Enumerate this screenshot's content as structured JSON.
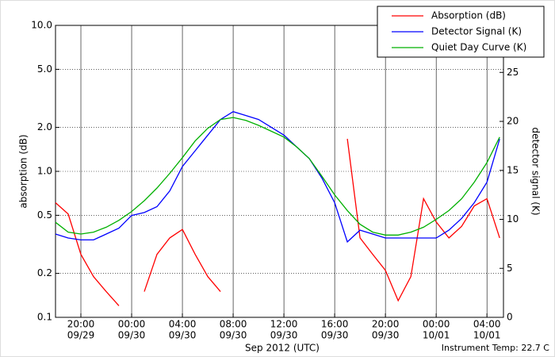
{
  "chart_data": {
    "type": "line",
    "xlabel": "Sep 2012 (UTC)",
    "ylabel": "absorption (dB)",
    "y2label": "detector signal (K)",
    "annotation": "Instrument Temp: 22.7 C",
    "legend": "upper right",
    "ylog": true,
    "grid": true,
    "x": [
      "2012-09-29T18:00",
      "2012-09-29T19:00",
      "2012-09-29T20:00",
      "2012-09-29T21:00",
      "2012-09-29T22:00",
      "2012-09-29T23:00",
      "2012-09-30T00:00",
      "2012-09-30T01:00",
      "2012-09-30T02:00",
      "2012-09-30T03:00",
      "2012-09-30T04:00",
      "2012-09-30T05:00",
      "2012-09-30T06:00",
      "2012-09-30T07:00",
      "2012-09-30T08:00",
      "2012-09-30T09:00",
      "2012-09-30T10:00",
      "2012-09-30T11:00",
      "2012-09-30T12:00",
      "2012-09-30T13:00",
      "2012-09-30T14:00",
      "2012-09-30T15:00",
      "2012-09-30T16:00",
      "2012-09-30T17:00",
      "2012-09-30T18:00",
      "2012-09-30T19:00",
      "2012-09-30T20:00",
      "2012-09-30T21:00",
      "2012-09-30T22:00",
      "2012-09-30T23:00",
      "2012-10-01T00:00",
      "2012-10-01T01:00",
      "2012-10-01T02:00",
      "2012-10-01T03:00",
      "2012-10-01T04:00",
      "2012-10-01T05:00"
    ],
    "xlim": [
      "2012-09-29T18:00",
      "2012-10-01T05:18"
    ],
    "xticks": [
      {
        "value": "2012-09-29T20:00",
        "label": [
          "20:00",
          "09/29"
        ]
      },
      {
        "value": "2012-09-30T00:00",
        "label": [
          "00:00",
          "09/30"
        ]
      },
      {
        "value": "2012-09-30T04:00",
        "label": [
          "04:00",
          "09/30"
        ]
      },
      {
        "value": "2012-09-30T08:00",
        "label": [
          "08:00",
          "09/30"
        ]
      },
      {
        "value": "2012-09-30T12:00",
        "label": [
          "12:00",
          "09/30"
        ]
      },
      {
        "value": "2012-09-30T16:00",
        "label": [
          "16:00",
          "09/30"
        ]
      },
      {
        "value": "2012-09-30T20:00",
        "label": [
          "20:00",
          "09/30"
        ]
      },
      {
        "value": "2012-10-01T00:00",
        "label": [
          "00:00",
          "10/01"
        ]
      },
      {
        "value": "2012-10-01T04:00",
        "label": [
          "04:00",
          "10/01"
        ]
      }
    ],
    "ylim": [
      0.1,
      10
    ],
    "yticks": [
      0.1,
      0.2,
      0.5,
      {
        "value": 1,
        "label": "1.0"
      },
      {
        "value": 2,
        "label": "2.0"
      },
      {
        "value": 5,
        "label": "5.0"
      },
      {
        "value": 10,
        "label": "10.0"
      }
    ],
    "y2lim": [
      0,
      29.8
    ],
    "y2ticks": [
      0,
      5,
      10,
      15,
      20,
      25
    ],
    "series": [
      {
        "name": "Absorption (dB)",
        "color": "#ff0000",
        "values": [
          0.61,
          0.51,
          0.27,
          0.19,
          0.15,
          0.12,
          null,
          0.15,
          0.27,
          0.35,
          0.4,
          0.27,
          0.19,
          0.15,
          null,
          null,
          null,
          null,
          null,
          null,
          null,
          null,
          null,
          1.67,
          0.35,
          0.27,
          0.21,
          0.13,
          0.19,
          0.65,
          0.45,
          0.35,
          0.42,
          0.58,
          0.65,
          0.35
        ]
      },
      {
        "name": "Detector Signal (K)",
        "color": "#0000ff",
        "axis": "y2",
        "values": [
          8.5,
          8.1,
          7.9,
          7.9,
          8.5,
          9.1,
          10.4,
          10.7,
          11.3,
          12.9,
          15.4,
          17,
          18.6,
          20.2,
          21,
          20.6,
          20.2,
          19.4,
          18.6,
          17.4,
          16.2,
          14.2,
          11.7,
          7.7,
          8.9,
          8.5,
          8.1,
          8.1,
          8.1,
          8.1,
          8.1,
          8.9,
          10.1,
          11.7,
          13.8,
          18.2
        ]
      },
      {
        "name": "Quiet Day Curve (K)",
        "color": "#00b000",
        "axis": "y2",
        "values": [
          9.7,
          8.7,
          8.5,
          8.7,
          9.2,
          9.9,
          10.8,
          11.9,
          13.2,
          14.7,
          16.3,
          18,
          19.3,
          20.2,
          20.4,
          20.1,
          19.6,
          19,
          18.4,
          17.4,
          16.2,
          14.4,
          12.5,
          10.9,
          9.5,
          8.7,
          8.4,
          8.4,
          8.7,
          9.2,
          10,
          10.9,
          12.1,
          13.8,
          15.8,
          18.4
        ]
      }
    ]
  }
}
